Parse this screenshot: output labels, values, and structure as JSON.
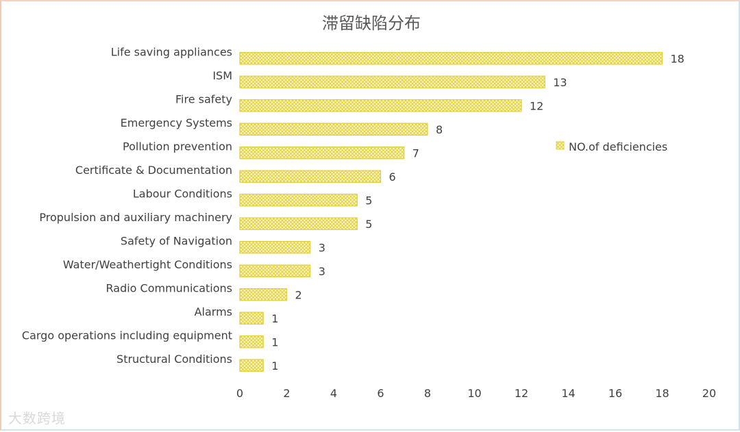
{
  "chart_data": {
    "type": "bar",
    "orientation": "horizontal",
    "title": "滞留缺陷分布",
    "categories": [
      "Life saving appliances",
      "ISM",
      "Fire safety",
      "Emergency Systems",
      "Pollution prevention",
      "Certificate & Documentation",
      "Labour Conditions",
      "Propulsion and auxiliary machinery",
      "Safety of Navigation",
      "Water/Weathertight Conditions",
      "Radio Communications",
      "Alarms",
      "Cargo operations including equipment",
      "Structural Conditions"
    ],
    "series": [
      {
        "name": "NO.of deficiencies",
        "values": [
          18,
          13,
          12,
          8,
          7,
          6,
          5,
          5,
          3,
          3,
          2,
          1,
          1,
          1
        ]
      }
    ],
    "xlim": [
      0,
      20
    ],
    "xticks": [
      0,
      2,
      4,
      6,
      8,
      10,
      12,
      14,
      16,
      18,
      20
    ],
    "grid": false,
    "legend_position": "right",
    "bar_color": "#e8d84a"
  },
  "watermark": "大数跨境"
}
